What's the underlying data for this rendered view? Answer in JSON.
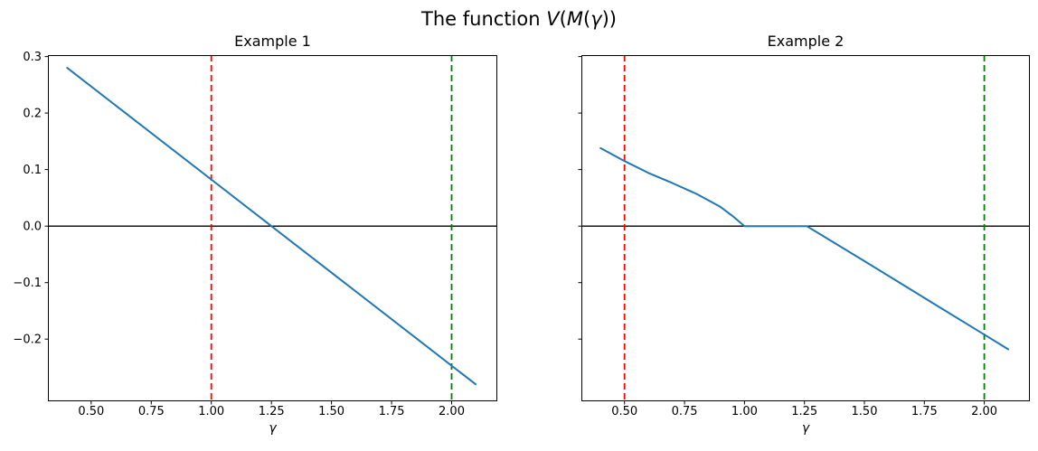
{
  "figure": {
    "title": "The function V(M(γ))",
    "title_parts": [
      {
        "text": "The function ",
        "italic": false
      },
      {
        "text": "V",
        "italic": true
      },
      {
        "text": "(",
        "italic": false
      },
      {
        "text": "M",
        "italic": true
      },
      {
        "text": "(",
        "italic": false
      },
      {
        "text": "γ",
        "italic": true
      },
      {
        "text": "))",
        "italic": false
      }
    ],
    "background_color": "#ffffff",
    "text_color": "#000000"
  },
  "chart_data": [
    {
      "type": "line",
      "title": "Example 1",
      "xlabel": "γ",
      "ylabel": "",
      "xlim": [
        0.32,
        2.19
      ],
      "ylim": [
        -0.31,
        0.3025
      ],
      "grid": false,
      "legend_position": "none",
      "x_ticks": {
        "values": [
          0.5,
          0.75,
          1.0,
          1.25,
          1.5,
          1.75,
          2.0
        ],
        "labels": [
          "0.50",
          "0.75",
          "1.00",
          "1.25",
          "1.50",
          "1.75",
          "2.00"
        ]
      },
      "y_ticks": {
        "values": [
          0.3,
          0.2,
          0.1,
          0.0,
          -0.1,
          -0.2
        ],
        "labels": [
          "0.3",
          "0.2",
          "0.1",
          "0.0",
          "−0.1",
          "−0.2"
        ],
        "show_labels": true
      },
      "series": [
        {
          "name": "V(M(gamma))",
          "color": "#1f77b4",
          "line_width": 2,
          "points": [
            [
              0.4,
              0.28
            ],
            [
              1.25,
              0.0
            ],
            [
              2.1,
              -0.28
            ]
          ]
        }
      ],
      "vlines": [
        {
          "x": 1.0,
          "color": "#ff0000",
          "style": "dashed",
          "name": "red-dashed-vline"
        },
        {
          "x": 2.0,
          "color": "#008000",
          "style": "dashed",
          "name": "green-dashed-vline"
        }
      ],
      "hlines": [
        {
          "y": 0.0,
          "color": "#000000",
          "style": "solid",
          "name": "zero-line"
        }
      ]
    },
    {
      "type": "line",
      "title": "Example 2",
      "xlabel": "γ",
      "ylabel": "",
      "xlim": [
        0.32,
        2.19
      ],
      "ylim": [
        -0.31,
        0.3025
      ],
      "grid": false,
      "legend_position": "none",
      "x_ticks": {
        "values": [
          0.5,
          0.75,
          1.0,
          1.25,
          1.5,
          1.75,
          2.0
        ],
        "labels": [
          "0.50",
          "0.75",
          "1.00",
          "1.25",
          "1.50",
          "1.75",
          "2.00"
        ]
      },
      "y_ticks": {
        "values": [
          0.3,
          0.2,
          0.1,
          0.0,
          -0.1,
          -0.2
        ],
        "labels": [
          "0.3",
          "0.2",
          "0.1",
          "0.0",
          "−0.1",
          "−0.2"
        ],
        "show_labels": false
      },
      "series": [
        {
          "name": "V(M(gamma))",
          "color": "#1f77b4",
          "line_width": 2,
          "points": [
            [
              0.4,
              0.138
            ],
            [
              0.5,
              0.115
            ],
            [
              0.6,
              0.094
            ],
            [
              0.7,
              0.076
            ],
            [
              0.8,
              0.057
            ],
            [
              0.9,
              0.034
            ],
            [
              0.95,
              0.018
            ],
            [
              1.0,
              0.0
            ],
            [
              1.26,
              0.0
            ],
            [
              1.5,
              -0.062
            ],
            [
              1.75,
              -0.127
            ],
            [
              2.0,
              -0.192
            ],
            [
              2.1,
              -0.218
            ]
          ]
        }
      ],
      "vlines": [
        {
          "x": 0.5,
          "color": "#ff0000",
          "style": "dashed",
          "name": "red-dashed-vline"
        },
        {
          "x": 2.0,
          "color": "#008000",
          "style": "dashed",
          "name": "green-dashed-vline"
        }
      ],
      "hlines": [
        {
          "y": 0.0,
          "color": "#000000",
          "style": "solid",
          "name": "zero-line"
        }
      ]
    }
  ]
}
